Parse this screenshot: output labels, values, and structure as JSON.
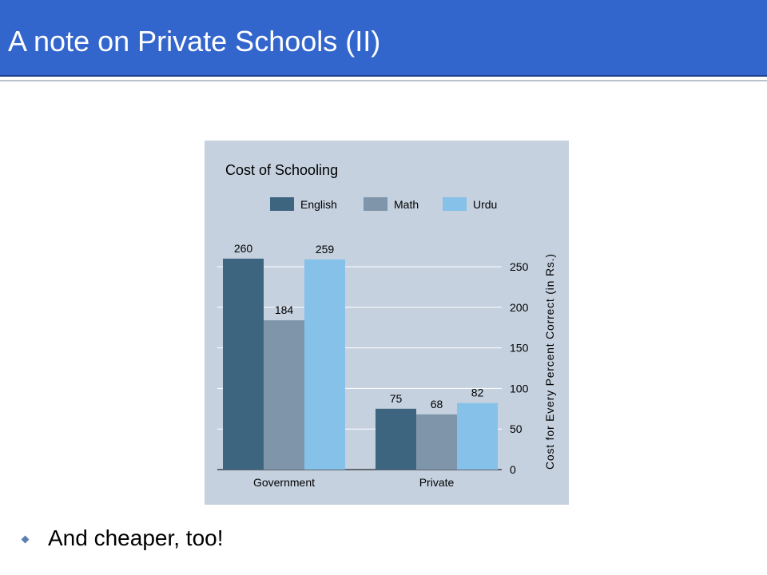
{
  "slide": {
    "title": "A note on Private Schools (II)",
    "bullets": [
      {
        "text": "And cheaper, too!",
        "icon": "diamond-bullet-icon"
      }
    ]
  },
  "colors": {
    "title_bar": "#3366cc",
    "chart_background": "#c5d1df",
    "English": "#3e6580",
    "Math": "#7f95aa",
    "Urdu": "#85c1e9"
  },
  "chart_data": {
    "type": "bar",
    "title": "Cost of Schooling",
    "xlabel": "",
    "ylabel": "Cost for Every Percent Correct (in Rs.)",
    "categories": [
      "Government",
      "Private"
    ],
    "series": [
      {
        "name": "English",
        "values": [
          260,
          75
        ]
      },
      {
        "name": "Math",
        "values": [
          184,
          68
        ]
      },
      {
        "name": "Urdu",
        "values": [
          259,
          82
        ]
      }
    ],
    "ylim": [
      0,
      250
    ],
    "yticks": [
      0,
      50,
      100,
      150,
      200,
      250
    ],
    "y_axis_side": "right",
    "grid": true,
    "legend": "top"
  }
}
